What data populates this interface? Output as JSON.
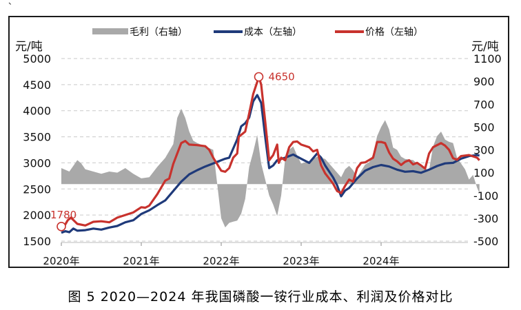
{
  "top_fragment": "、 ",
  "caption": "图 5 2020—2024 年我国磷酸一铵行业成本、利润及价格对比",
  "colors": {
    "margin": "#a9a9a9",
    "cost": "#1f3a7a",
    "price": "#c8322d",
    "annotation": "#c8322d"
  },
  "chart_data": {
    "type": "line",
    "left_axis": {
      "unit": "元/吨",
      "ticks": [
        1500,
        2000,
        2500,
        3000,
        3500,
        4000,
        4500,
        5000
      ],
      "range": [
        1500,
        5000
      ]
    },
    "right_axis": {
      "unit": "元/吨",
      "ticks": [
        -500,
        -300,
        -100,
        100,
        300,
        500,
        700,
        900,
        1100
      ],
      "range": [
        -500,
        1100
      ]
    },
    "x_ticks": [
      "2020年",
      "2021年",
      "2022年",
      "2023年",
      "2024年"
    ],
    "legend": [
      {
        "key": "margin",
        "label": "毛利（右轴）"
      },
      {
        "key": "cost",
        "label": "成本（左轴）"
      },
      {
        "key": "price",
        "label": "价格（左轴）"
      }
    ],
    "annotations": [
      {
        "label": "1780",
        "x": 2020.0,
        "y": 1780
      },
      {
        "label": "4650",
        "x": 2022.47,
        "y": 4650
      }
    ],
    "series": [
      {
        "name": "毛利（右轴）",
        "axis": "right",
        "kind": "area",
        "points": [
          [
            2020.0,
            140
          ],
          [
            2020.1,
            110
          ],
          [
            2020.15,
            160
          ],
          [
            2020.2,
            210
          ],
          [
            2020.25,
            180
          ],
          [
            2020.3,
            130
          ],
          [
            2020.4,
            110
          ],
          [
            2020.5,
            90
          ],
          [
            2020.6,
            110
          ],
          [
            2020.7,
            100
          ],
          [
            2020.8,
            140
          ],
          [
            2020.9,
            90
          ],
          [
            2021.0,
            50
          ],
          [
            2021.1,
            60
          ],
          [
            2021.2,
            150
          ],
          [
            2021.3,
            230
          ],
          [
            2021.4,
            350
          ],
          [
            2021.45,
            580
          ],
          [
            2021.5,
            660
          ],
          [
            2021.55,
            580
          ],
          [
            2021.6,
            460
          ],
          [
            2021.65,
            380
          ],
          [
            2021.7,
            360
          ],
          [
            2021.8,
            330
          ],
          [
            2021.9,
            300
          ],
          [
            2022.0,
            -300
          ],
          [
            2022.05,
            -380
          ],
          [
            2022.1,
            -340
          ],
          [
            2022.15,
            -330
          ],
          [
            2022.2,
            -320
          ],
          [
            2022.25,
            -260
          ],
          [
            2022.3,
            -130
          ],
          [
            2022.35,
            150
          ],
          [
            2022.4,
            280
          ],
          [
            2022.45,
            430
          ],
          [
            2022.5,
            180
          ],
          [
            2022.55,
            40
          ],
          [
            2022.6,
            -100
          ],
          [
            2022.65,
            -180
          ],
          [
            2022.7,
            -280
          ],
          [
            2022.75,
            -100
          ],
          [
            2022.8,
            220
          ],
          [
            2022.85,
            300
          ],
          [
            2022.9,
            330
          ],
          [
            2022.95,
            250
          ],
          [
            2023.0,
            180
          ],
          [
            2023.1,
            200
          ],
          [
            2023.2,
            240
          ],
          [
            2023.3,
            220
          ],
          [
            2023.4,
            140
          ],
          [
            2023.5,
            60
          ],
          [
            2023.55,
            130
          ],
          [
            2023.6,
            160
          ],
          [
            2023.65,
            120
          ],
          [
            2023.7,
            60
          ],
          [
            2023.8,
            170
          ],
          [
            2023.85,
            190
          ],
          [
            2023.9,
            260
          ],
          [
            2023.95,
            420
          ],
          [
            2024.0,
            500
          ],
          [
            2024.05,
            560
          ],
          [
            2024.1,
            480
          ],
          [
            2024.15,
            320
          ],
          [
            2024.2,
            300
          ],
          [
            2024.25,
            240
          ],
          [
            2024.3,
            220
          ],
          [
            2024.4,
            210
          ],
          [
            2024.5,
            150
          ],
          [
            2024.6,
            120
          ],
          [
            2024.65,
            330
          ],
          [
            2024.7,
            420
          ],
          [
            2024.75,
            460
          ],
          [
            2024.8,
            390
          ],
          [
            2024.85,
            370
          ],
          [
            2024.9,
            360
          ],
          [
            2024.95,
            230
          ],
          [
            2025.0,
            180
          ],
          [
            2025.05,
            130
          ],
          [
            2025.1,
            40
          ],
          [
            2025.15,
            80
          ],
          [
            2025.2,
            -30
          ],
          [
            2025.23,
            -80
          ]
        ]
      },
      {
        "name": "成本（左轴）",
        "axis": "left",
        "kind": "line",
        "points": [
          [
            2020.0,
            1660
          ],
          [
            2020.05,
            1690
          ],
          [
            2020.1,
            1670
          ],
          [
            2020.15,
            1740
          ],
          [
            2020.2,
            1700
          ],
          [
            2020.3,
            1710
          ],
          [
            2020.4,
            1740
          ],
          [
            2020.5,
            1720
          ],
          [
            2020.6,
            1760
          ],
          [
            2020.7,
            1790
          ],
          [
            2020.8,
            1860
          ],
          [
            2020.9,
            1900
          ],
          [
            2021.0,
            2020
          ],
          [
            2021.1,
            2090
          ],
          [
            2021.2,
            2190
          ],
          [
            2021.3,
            2280
          ],
          [
            2021.4,
            2460
          ],
          [
            2021.5,
            2640
          ],
          [
            2021.6,
            2780
          ],
          [
            2021.7,
            2860
          ],
          [
            2021.8,
            2930
          ],
          [
            2021.9,
            2990
          ],
          [
            2022.0,
            3050
          ],
          [
            2022.05,
            3080
          ],
          [
            2022.1,
            3100
          ],
          [
            2022.2,
            3450
          ],
          [
            2022.25,
            3700
          ],
          [
            2022.3,
            3760
          ],
          [
            2022.35,
            3870
          ],
          [
            2022.4,
            4180
          ],
          [
            2022.45,
            4300
          ],
          [
            2022.5,
            4150
          ],
          [
            2022.55,
            3500
          ],
          [
            2022.6,
            2900
          ],
          [
            2022.65,
            2950
          ],
          [
            2022.7,
            3050
          ],
          [
            2022.8,
            3100
          ],
          [
            2022.9,
            3160
          ],
          [
            2023.0,
            3080
          ],
          [
            2023.1,
            3000
          ],
          [
            2023.2,
            3180
          ],
          [
            2023.25,
            3100
          ],
          [
            2023.3,
            2950
          ],
          [
            2023.4,
            2720
          ],
          [
            2023.45,
            2570
          ],
          [
            2023.5,
            2360
          ],
          [
            2023.55,
            2470
          ],
          [
            2023.6,
            2520
          ],
          [
            2023.7,
            2700
          ],
          [
            2023.8,
            2850
          ],
          [
            2023.9,
            2920
          ],
          [
            2024.0,
            2960
          ],
          [
            2024.1,
            2930
          ],
          [
            2024.2,
            2870
          ],
          [
            2024.3,
            2830
          ],
          [
            2024.4,
            2840
          ],
          [
            2024.5,
            2810
          ],
          [
            2024.6,
            2870
          ],
          [
            2024.7,
            2940
          ],
          [
            2024.8,
            2990
          ],
          [
            2024.9,
            3000
          ],
          [
            2025.0,
            3080
          ],
          [
            2025.1,
            3130
          ],
          [
            2025.2,
            3150
          ],
          [
            2025.23,
            3140
          ]
        ]
      },
      {
        "name": "价格（左轴）",
        "axis": "left",
        "kind": "line",
        "points": [
          [
            2020.0,
            1800
          ],
          [
            2020.03,
            1770
          ],
          [
            2020.08,
            1900
          ],
          [
            2020.12,
            1950
          ],
          [
            2020.2,
            1830
          ],
          [
            2020.3,
            1800
          ],
          [
            2020.4,
            1870
          ],
          [
            2020.5,
            1880
          ],
          [
            2020.6,
            1860
          ],
          [
            2020.7,
            1950
          ],
          [
            2020.8,
            2000
          ],
          [
            2020.9,
            2050
          ],
          [
            2021.0,
            2150
          ],
          [
            2021.05,
            2140
          ],
          [
            2021.1,
            2180
          ],
          [
            2021.2,
            2400
          ],
          [
            2021.3,
            2660
          ],
          [
            2021.35,
            2700
          ],
          [
            2021.4,
            2980
          ],
          [
            2021.5,
            3380
          ],
          [
            2021.55,
            3420
          ],
          [
            2021.6,
            3350
          ],
          [
            2021.7,
            3340
          ],
          [
            2021.8,
            3320
          ],
          [
            2021.85,
            3250
          ],
          [
            2021.9,
            3100
          ],
          [
            2022.0,
            2850
          ],
          [
            2022.05,
            2830
          ],
          [
            2022.1,
            2900
          ],
          [
            2022.15,
            3100
          ],
          [
            2022.2,
            3180
          ],
          [
            2022.22,
            3500
          ],
          [
            2022.3,
            3600
          ],
          [
            2022.35,
            3950
          ],
          [
            2022.4,
            4320
          ],
          [
            2022.45,
            4550
          ],
          [
            2022.47,
            4650
          ],
          [
            2022.5,
            4500
          ],
          [
            2022.55,
            3800
          ],
          [
            2022.6,
            3050
          ],
          [
            2022.65,
            3150
          ],
          [
            2022.7,
            3350
          ],
          [
            2022.72,
            3000
          ],
          [
            2022.75,
            3100
          ],
          [
            2022.8,
            3050
          ],
          [
            2022.85,
            3300
          ],
          [
            2022.9,
            3400
          ],
          [
            2022.95,
            3410
          ],
          [
            2023.0,
            3350
          ],
          [
            2023.1,
            3300
          ],
          [
            2023.15,
            3220
          ],
          [
            2023.2,
            3250
          ],
          [
            2023.25,
            2950
          ],
          [
            2023.3,
            2800
          ],
          [
            2023.4,
            2600
          ],
          [
            2023.45,
            2460
          ],
          [
            2023.5,
            2420
          ],
          [
            2023.55,
            2560
          ],
          [
            2023.6,
            2680
          ],
          [
            2023.65,
            2640
          ],
          [
            2023.7,
            2900
          ],
          [
            2023.75,
            3000
          ],
          [
            2023.8,
            3010
          ],
          [
            2023.9,
            3100
          ],
          [
            2023.95,
            3400
          ],
          [
            2024.0,
            3400
          ],
          [
            2024.05,
            3380
          ],
          [
            2024.1,
            3200
          ],
          [
            2024.15,
            3080
          ],
          [
            2024.2,
            3030
          ],
          [
            2024.25,
            2960
          ],
          [
            2024.3,
            3020
          ],
          [
            2024.35,
            3050
          ],
          [
            2024.4,
            2970
          ],
          [
            2024.45,
            3000
          ],
          [
            2024.5,
            2950
          ],
          [
            2024.55,
            2890
          ],
          [
            2024.6,
            3180
          ],
          [
            2024.65,
            3300
          ],
          [
            2024.7,
            3340
          ],
          [
            2024.75,
            3380
          ],
          [
            2024.8,
            3330
          ],
          [
            2024.85,
            3250
          ],
          [
            2024.9,
            3090
          ],
          [
            2024.95,
            3060
          ],
          [
            2025.0,
            3130
          ],
          [
            2025.1,
            3150
          ],
          [
            2025.2,
            3100
          ],
          [
            2025.23,
            3050
          ]
        ]
      }
    ]
  }
}
